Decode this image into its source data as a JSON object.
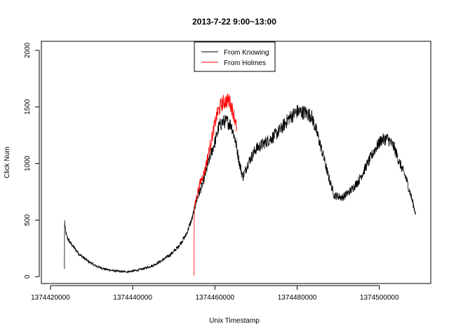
{
  "chart_data": {
    "type": "line",
    "title": "2013-7-22 9:00~13:00",
    "xlabel": "Unix Timestamp",
    "ylabel": "Click Num",
    "xlim": [
      1374417800,
      1374512500
    ],
    "ylim": [
      -60,
      2080
    ],
    "x_ticks": [
      1374420000,
      1374440000,
      1374460000,
      1374480000,
      1374500000
    ],
    "x_tick_labels": [
      "1374420000",
      "1374440000",
      "1374460000",
      "1374480000",
      "1374500000"
    ],
    "y_ticks": [
      0,
      500,
      1000,
      1500,
      2000
    ],
    "y_tick_labels": [
      "0",
      "500",
      "1000",
      "1500",
      "2000"
    ],
    "grid": false,
    "legend_position": "top-center",
    "series": [
      {
        "name": "From Knowing",
        "color": "#000000",
        "x": [
          1374423400,
          1374423450,
          1374423600,
          1374424000,
          1374425000,
          1374427000,
          1374429000,
          1374431000,
          1374433000,
          1374435000,
          1374437000,
          1374439000,
          1374441000,
          1374443000,
          1374445000,
          1374447000,
          1374449000,
          1374451000,
          1374453000,
          1374454500,
          1374455500,
          1374457000,
          1374458000,
          1374459000,
          1374460000,
          1374461000,
          1374462000,
          1374463000,
          1374464000,
          1374465000,
          1374466000,
          1374466800,
          1374468000,
          1374470000,
          1374472000,
          1374474000,
          1374476000,
          1374478000,
          1374480000,
          1374482000,
          1374483500,
          1374485000,
          1374486500,
          1374487500,
          1374489000,
          1374491000,
          1374493000,
          1374495000,
          1374497000,
          1374499000,
          1374500500,
          1374502000,
          1374503500,
          1374505000,
          1374506500,
          1374507800,
          1374508800
        ],
        "y": [
          70,
          490,
          420,
          350,
          290,
          200,
          140,
          95,
          70,
          55,
          45,
          45,
          55,
          75,
          100,
          140,
          190,
          260,
          370,
          520,
          670,
          820,
          950,
          1080,
          1190,
          1330,
          1370,
          1370,
          1340,
          1200,
          1000,
          880,
          1000,
          1130,
          1180,
          1230,
          1300,
          1400,
          1460,
          1450,
          1420,
          1250,
          1050,
          900,
          720,
          700,
          760,
          850,
          990,
          1130,
          1210,
          1220,
          1150,
          1000,
          870,
          700,
          560
        ]
      },
      {
        "name": "From Holmes",
        "color": "#ff0000",
        "x": [
          1374454900,
          1374455000,
          1374455500,
          1374456500,
          1374457500,
          1374458500,
          1374459500,
          1374460500,
          1374461500,
          1374462500,
          1374463500,
          1374464500,
          1374465300
        ],
        "y": [
          10,
          600,
          700,
          840,
          930,
          1100,
          1270,
          1430,
          1520,
          1550,
          1560,
          1450,
          1310
        ]
      }
    ]
  }
}
